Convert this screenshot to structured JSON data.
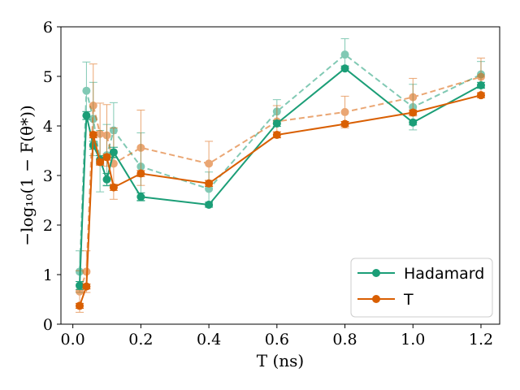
{
  "chart_data": {
    "type": "line",
    "xlabel": "T (ns)",
    "ylabel": "−log₁₀(1 − F(θ*))",
    "xlim": [
      -0.035,
      1.255
    ],
    "ylim": [
      0,
      6
    ],
    "xticks": [
      0.0,
      0.2,
      0.4,
      0.6,
      0.8,
      1.0,
      1.2
    ],
    "xtick_labels": [
      "0.0",
      "0.2",
      "0.4",
      "0.6",
      "0.8",
      "1.0",
      "1.2"
    ],
    "yticks": [
      0,
      1,
      2,
      3,
      4,
      5,
      6
    ],
    "ytick_labels": [
      "0",
      "1",
      "2",
      "3",
      "4",
      "5",
      "6"
    ],
    "grid": false,
    "legend_position": "bottom-right",
    "series": [
      {
        "name": "Hadamard",
        "color": "#1b9e77",
        "style": "solid",
        "x": [
          0.02,
          0.04,
          0.06,
          0.08,
          0.1,
          0.12,
          0.2,
          0.4,
          0.6,
          0.8,
          1.0,
          1.2
        ],
        "y": [
          0.78,
          4.21,
          3.61,
          3.32,
          2.92,
          3.47,
          2.57,
          2.41,
          4.05,
          5.16,
          4.07,
          4.82
        ],
        "yerr": [
          0.08,
          0.08,
          0.08,
          0.08,
          0.12,
          0.1,
          0.08,
          0.05,
          0.06,
          0.05,
          0.05,
          0.06
        ]
      },
      {
        "name": "T",
        "color": "#d95f02",
        "style": "solid",
        "x": [
          0.02,
          0.04,
          0.06,
          0.08,
          0.1,
          0.12,
          0.2,
          0.4,
          0.6,
          0.8,
          1.0,
          1.2
        ],
        "y": [
          0.37,
          0.76,
          3.82,
          3.27,
          3.37,
          2.76,
          3.04,
          2.84,
          3.82,
          4.04,
          4.27,
          4.62
        ],
        "yerr": [
          0.05,
          0.05,
          0.06,
          0.06,
          0.06,
          0.06,
          0.06,
          0.06,
          0.06,
          0.05,
          0.05,
          0.05
        ]
      },
      {
        "name": "",
        "color": "#1b9e77",
        "style": "dashed",
        "x": [
          0.02,
          0.04,
          0.06,
          0.08,
          0.1,
          0.12,
          0.2,
          0.4,
          0.6,
          0.8,
          1.0,
          1.2
        ],
        "y": [
          1.06,
          4.71,
          4.14,
          3.29,
          3.41,
          3.91,
          3.18,
          2.73,
          4.29,
          5.44,
          4.38,
          5.04
        ],
        "yerr": [
          0.42,
          0.58,
          0.74,
          0.62,
          0.62,
          0.56,
          0.68,
          0.34,
          0.24,
          0.32,
          0.46,
          0.26
        ]
      },
      {
        "name": "",
        "color": "#d95f02",
        "style": "dashed",
        "x": [
          0.02,
          0.04,
          0.06,
          0.08,
          0.1,
          0.12,
          0.2,
          0.4,
          0.6,
          0.8,
          1.0,
          1.2
        ],
        "y": [
          0.66,
          1.06,
          4.41,
          3.84,
          3.81,
          3.24,
          3.56,
          3.24,
          4.09,
          4.28,
          4.58,
          4.99
        ],
        "yerr": [
          0.42,
          0.42,
          0.84,
          0.62,
          0.62,
          0.72,
          0.76,
          0.45,
          0.32,
          0.32,
          0.38,
          0.38
        ]
      }
    ]
  }
}
